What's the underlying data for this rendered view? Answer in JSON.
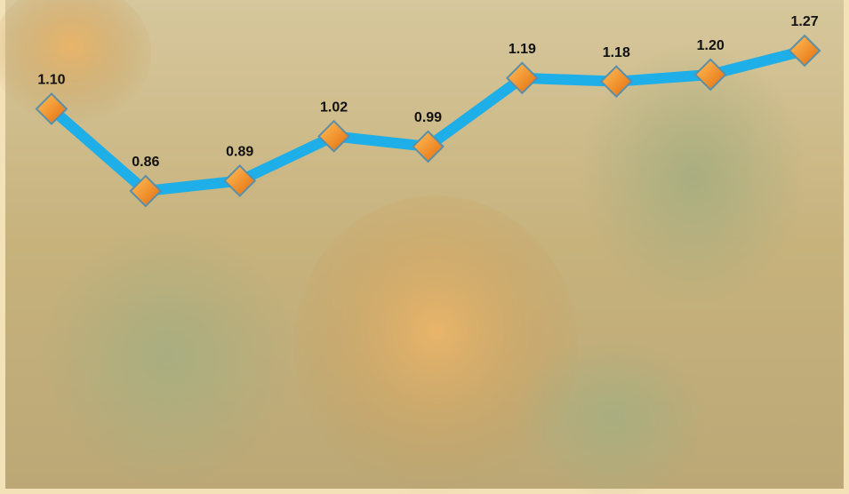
{
  "chart_data": {
    "type": "line",
    "categories": [
      null,
      null,
      null,
      null,
      null,
      null,
      null,
      null,
      null
    ],
    "series": [
      {
        "color": "#1eaee8",
        "values": [
          1.1,
          0.86,
          0.89,
          1.02,
          0.99,
          1.19,
          1.18,
          1.2,
          1.27
        ],
        "value_labels": [
          "1.10",
          "0.86",
          "0.89",
          "1.02",
          "0.99",
          "1.19",
          "1.18",
          "1.20",
          "1.27"
        ]
      }
    ],
    "marker_color": "#f28a1c"
  }
}
